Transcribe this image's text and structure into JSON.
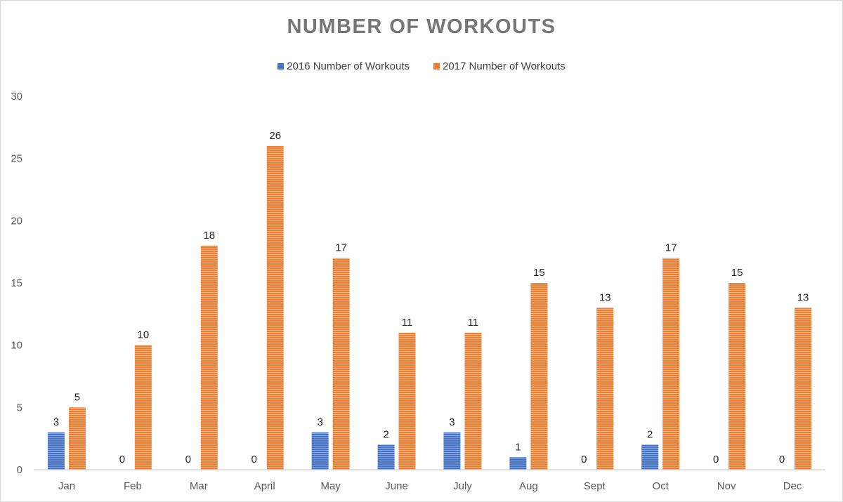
{
  "chart_data": {
    "type": "bar",
    "title": "NUMBER OF WORKOUTS",
    "xlabel": "",
    "ylabel": "",
    "categories": [
      "Jan",
      "Feb",
      "Mar",
      "April",
      "May",
      "June",
      "July",
      "Aug",
      "Sept",
      "Oct",
      "Nov",
      "Dec"
    ],
    "series": [
      {
        "name": "2016 Number of Workouts",
        "color": "#4472c4",
        "values": [
          3,
          0,
          0,
          0,
          3,
          2,
          3,
          1,
          0,
          2,
          0,
          0
        ]
      },
      {
        "name": "2017 Number of Workouts",
        "color": "#ed7d31",
        "values": [
          5,
          10,
          18,
          26,
          17,
          11,
          11,
          15,
          13,
          17,
          15,
          13
        ]
      }
    ],
    "ylim": [
      0,
      30
    ],
    "yticks": [
      0,
      5,
      10,
      15,
      20,
      25,
      30
    ],
    "grid": false,
    "data_labels": true,
    "legend_position": "top"
  }
}
